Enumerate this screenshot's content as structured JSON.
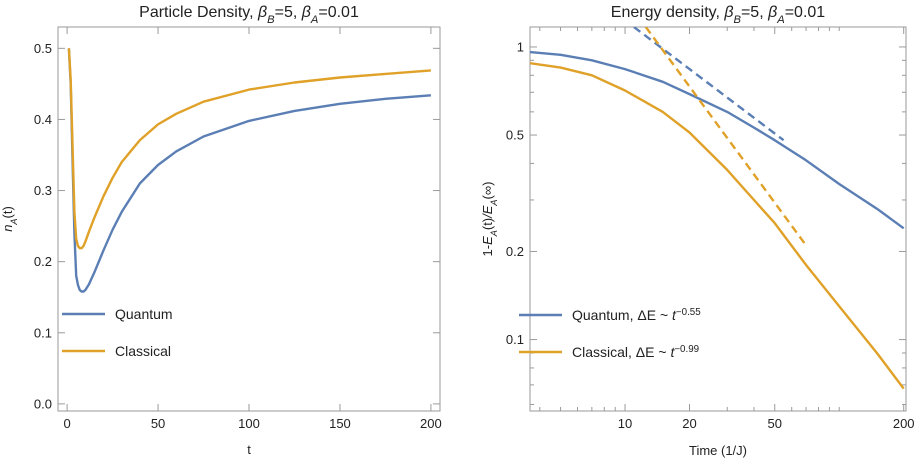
{
  "colors": {
    "quantum": "#5b7fb5",
    "classical": "#e0a128"
  },
  "chart_data": [
    {
      "type": "line",
      "title_parts": [
        "Particle Density, ",
        "β",
        "B",
        "=5, ",
        "β",
        "A",
        "=0.01"
      ],
      "xlabel": "t",
      "ylabel_parts": [
        "n",
        "A",
        "(t)"
      ],
      "xlim": [
        -5,
        205
      ],
      "ylim": [
        -0.01,
        0.53
      ],
      "xticks": [
        0,
        50,
        100,
        150,
        200
      ],
      "xtick_labels": [
        "0",
        "50",
        "100",
        "150",
        "200"
      ],
      "yticks": [
        0.0,
        0.1,
        0.2,
        0.3,
        0.4,
        0.5
      ],
      "ytick_labels": [
        "0.0",
        "0.1",
        "0.2",
        "0.3",
        "0.4",
        "0.5"
      ],
      "grid": false,
      "legend_position": "lower-left",
      "series": [
        {
          "name": "Quantum",
          "color_key": "quantum",
          "x": [
            1,
            2,
            3,
            4,
            5,
            6,
            7,
            8,
            9,
            10,
            12,
            15,
            20,
            25,
            30,
            40,
            50,
            60,
            75,
            100,
            125,
            150,
            175,
            200
          ],
          "y": [
            0.5,
            0.45,
            0.34,
            0.24,
            0.18,
            0.167,
            0.16,
            0.158,
            0.158,
            0.16,
            0.168,
            0.185,
            0.216,
            0.245,
            0.27,
            0.31,
            0.336,
            0.355,
            0.376,
            0.398,
            0.412,
            0.422,
            0.429,
            0.434
          ]
        },
        {
          "name": "Classical",
          "color_key": "classical",
          "x": [
            1,
            2,
            3,
            4,
            5,
            6,
            7,
            8,
            9,
            10,
            12,
            15,
            20,
            25,
            30,
            40,
            50,
            60,
            75,
            100,
            125,
            150,
            175,
            200
          ],
          "y": [
            0.5,
            0.455,
            0.36,
            0.27,
            0.232,
            0.222,
            0.219,
            0.219,
            0.222,
            0.228,
            0.242,
            0.262,
            0.292,
            0.318,
            0.34,
            0.371,
            0.393,
            0.408,
            0.425,
            0.442,
            0.452,
            0.459,
            0.464,
            0.469
          ]
        }
      ]
    },
    {
      "type": "line",
      "title_parts": [
        "Energy density, ",
        "β",
        "B",
        "=5, ",
        "β",
        "A",
        "=0.01"
      ],
      "xlabel": "Time (1/J)",
      "ylabel_parts": [
        "1-E",
        "A",
        "(t)/E",
        "A",
        "(∞)"
      ],
      "xscale": "log",
      "yscale": "log",
      "xlim": [
        3.6,
        205
      ],
      "ylim": [
        0.057,
        1.17
      ],
      "xticks": [
        10,
        20,
        50,
        200
      ],
      "xtick_labels": [
        "10",
        "20",
        "50",
        "200"
      ],
      "xminor_ticks": [
        4,
        5,
        6,
        7,
        8,
        9,
        30,
        40,
        60,
        70,
        80,
        90,
        100
      ],
      "yticks": [
        0.1,
        0.2,
        0.5,
        1
      ],
      "ytick_labels": [
        "0.1",
        "0.2",
        "0.5",
        "1"
      ],
      "yminor_ticks": [
        0.06,
        0.07,
        0.08,
        0.09,
        0.3,
        0.4,
        0.6,
        0.7,
        0.8,
        0.9
      ],
      "grid": false,
      "legend_position": "lower-left",
      "series": [
        {
          "name_parts": [
            "Quantum, ΔE ~ ",
            "t",
            "−0.55"
          ],
          "color_key": "quantum",
          "x": [
            3.6,
            5,
            7,
            10,
            15,
            20,
            30,
            40,
            50,
            70,
            100,
            150,
            200
          ],
          "y": [
            0.96,
            0.94,
            0.9,
            0.84,
            0.76,
            0.69,
            0.6,
            0.53,
            0.48,
            0.41,
            0.34,
            0.28,
            0.24
          ]
        },
        {
          "name_parts": [
            "Classical, ΔE ~ ",
            "t",
            "−0.99"
          ],
          "color_key": "classical",
          "x": [
            3.6,
            5,
            7,
            10,
            15,
            20,
            30,
            40,
            50,
            70,
            100,
            150,
            200
          ],
          "y": [
            0.88,
            0.85,
            0.8,
            0.71,
            0.6,
            0.51,
            0.38,
            0.3,
            0.25,
            0.18,
            0.13,
            0.09,
            0.068
          ]
        },
        {
          "style": "dashed",
          "color_key": "quantum",
          "x": [
            11,
            55
          ],
          "y": [
            1.17,
            0.48
          ]
        },
        {
          "style": "dashed",
          "color_key": "classical",
          "x": [
            12.5,
            70
          ],
          "y": [
            1.17,
            0.21
          ]
        }
      ]
    }
  ]
}
